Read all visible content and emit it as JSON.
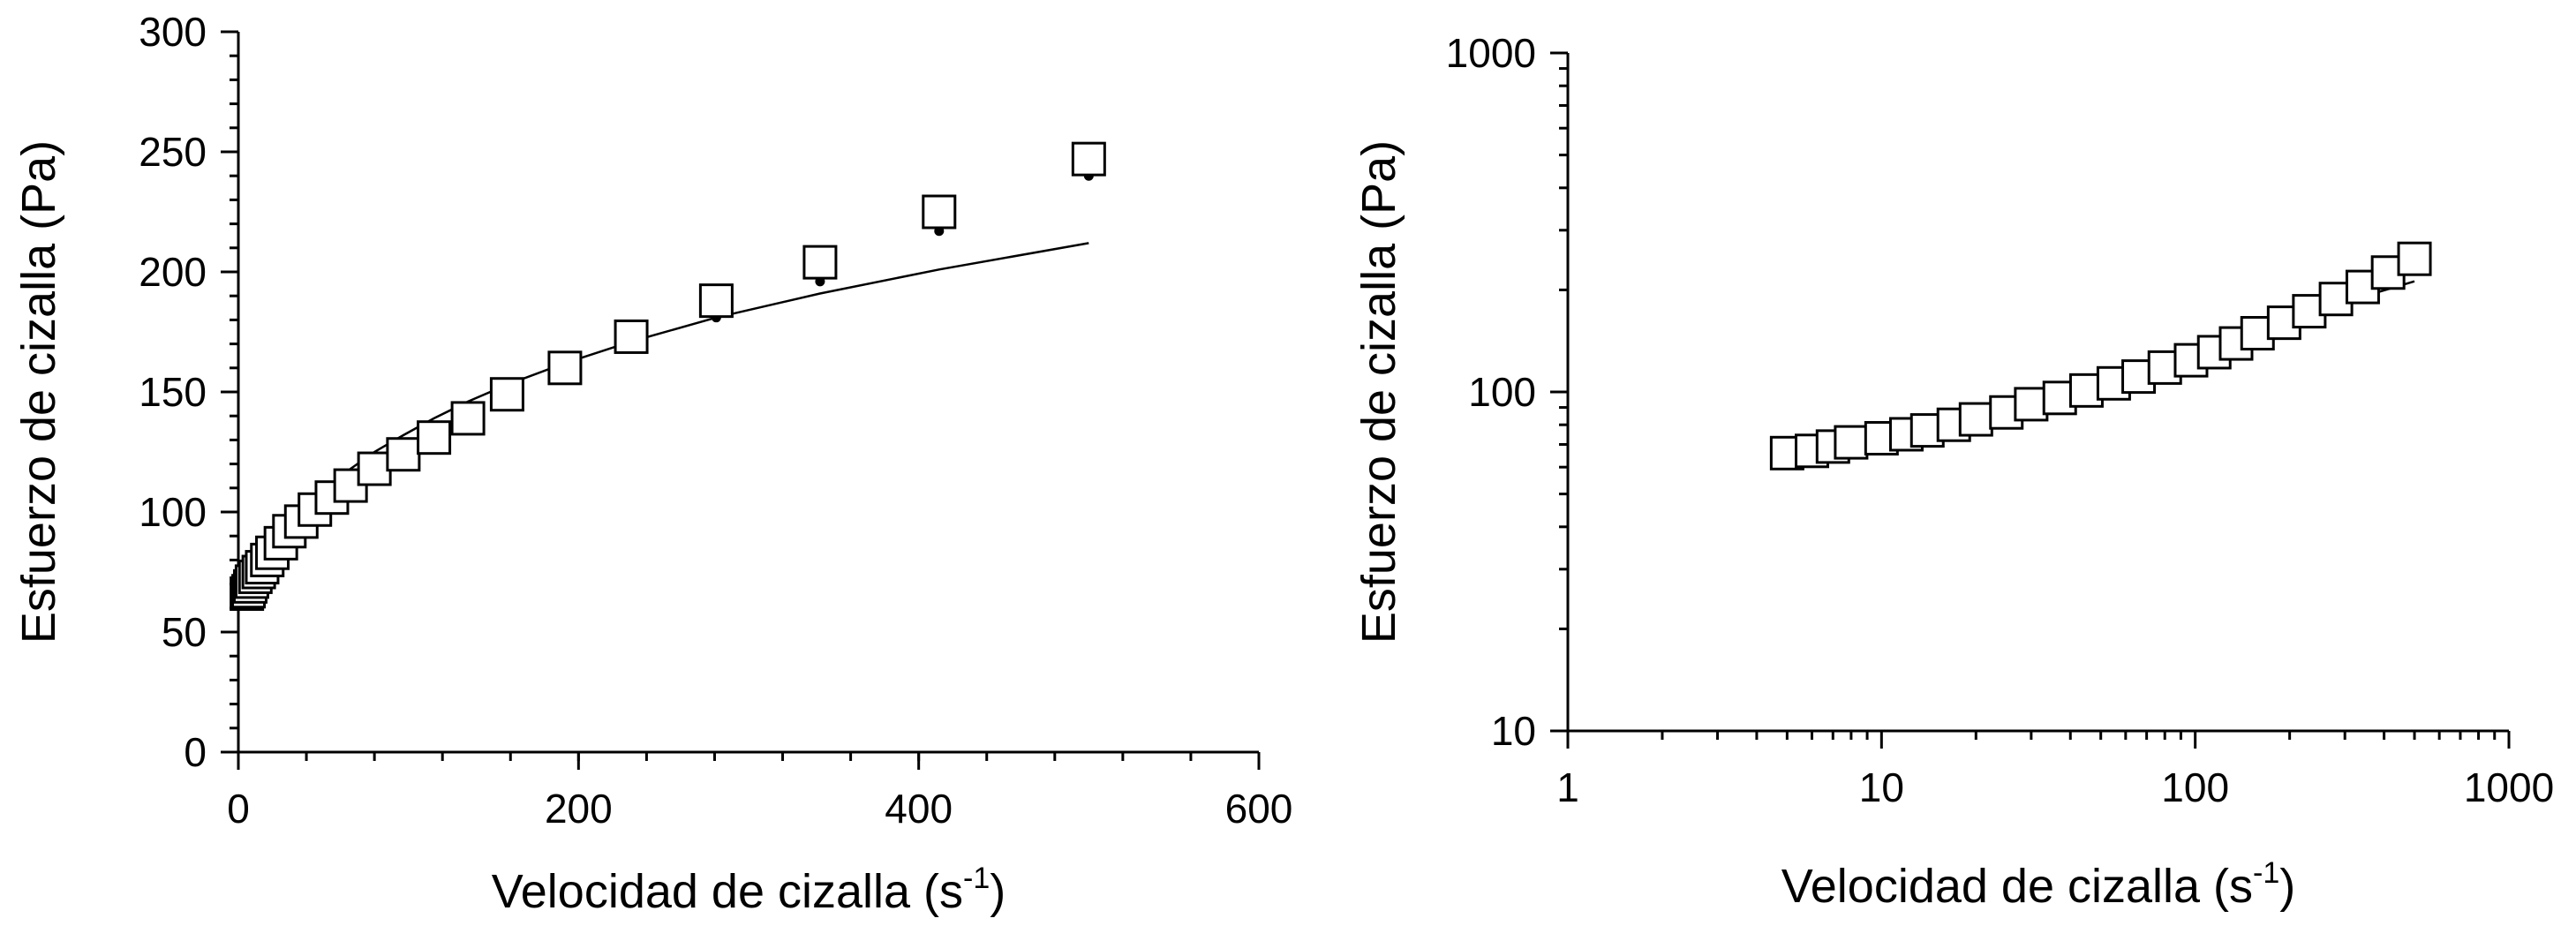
{
  "chart_data": [
    {
      "type": "scatter",
      "xlabel": "Velocidad de cizalla (s",
      "xlabel_sup": "-1",
      "xlabel_close": ")",
      "ylabel": "Esfuerzo de cizalla (Pa)",
      "xscale": "linear",
      "yscale": "linear",
      "xlim": [
        0,
        600
      ],
      "ylim": [
        0,
        300
      ],
      "xticks": [
        0,
        200,
        400,
        600
      ],
      "xtick_labels": [
        "0",
        "200",
        "400",
        "600"
      ],
      "yticks": [
        0,
        50,
        100,
        150,
        200,
        250,
        300
      ],
      "ytick_labels": [
        "0",
        "50",
        "100",
        "150",
        "200",
        "250",
        "300"
      ],
      "grid": false,
      "series": [
        {
          "marker": "open-square",
          "x": [
            5,
            6,
            7,
            8,
            10,
            12,
            14,
            17,
            20,
            25,
            30,
            37,
            45,
            55,
            66,
            80,
            97,
            115,
            135,
            158,
            192,
            231,
            281,
            342,
            412,
            500
          ],
          "y": [
            66,
            67,
            69,
            71,
            73,
            75,
            77,
            80,
            83,
            87,
            92,
            96,
            101,
            106,
            111,
            118,
            124,
            131,
            139,
            149,
            160,
            173,
            188,
            204,
            225,
            247
          ]
        },
        {
          "style": "dotted",
          "model": "power-law",
          "x": [
            5,
            6,
            7,
            8,
            10,
            12,
            14,
            17,
            20,
            25,
            30,
            37,
            45,
            55,
            66,
            80,
            97,
            115,
            135,
            158,
            192,
            231,
            281,
            342,
            412,
            500
          ],
          "y": [
            63,
            65,
            67,
            69,
            72,
            75,
            78,
            81,
            84,
            89,
            93,
            98,
            103,
            109,
            115,
            121,
            128,
            135,
            142,
            149,
            159,
            169,
            181,
            196,
            217,
            240
          ]
        },
        {
          "style": "solid",
          "model": "power-law",
          "x": [
            5,
            6,
            7,
            8,
            10,
            12,
            14,
            17,
            20,
            25,
            30,
            37,
            45,
            55,
            66,
            80,
            97,
            115,
            135,
            158,
            192,
            231,
            281,
            342,
            412,
            500
          ],
          "y": [
            60,
            63,
            66,
            68,
            72,
            75,
            78,
            82,
            85,
            90,
            95,
            100,
            106,
            112,
            118,
            125,
            132,
            139,
            146,
            153,
            162,
            171,
            181,
            191,
            201,
            212
          ]
        }
      ]
    },
    {
      "type": "scatter",
      "xlabel": "Velocidad de cizalla (s",
      "xlabel_sup": "-1",
      "xlabel_close": ")",
      "ylabel": "Esfuerzo de cizalla (Pa)",
      "xscale": "log",
      "yscale": "log",
      "xlim": [
        1,
        1000
      ],
      "ylim": [
        10,
        1000
      ],
      "xticks": [
        1,
        10,
        100,
        1000
      ],
      "xtick_labels": [
        "1",
        "10",
        "100",
        "1000"
      ],
      "yticks": [
        10,
        100,
        1000
      ],
      "ytick_labels": [
        "10",
        "100",
        "1000"
      ],
      "grid": false,
      "series": [
        {
          "marker": "open-square",
          "x": [
            5,
            6,
            7,
            8,
            10,
            12,
            14,
            17,
            20,
            25,
            30,
            37,
            45,
            55,
            66,
            80,
            97,
            115,
            135,
            158,
            192,
            231,
            281,
            342,
            412,
            500
          ],
          "y": [
            66,
            67,
            69,
            71,
            73,
            75,
            77,
            80,
            83,
            87,
            92,
            96,
            101,
            106,
            111,
            118,
            124,
            131,
            139,
            149,
            160,
            173,
            188,
            204,
            225,
            247
          ]
        },
        {
          "style": "dotted",
          "model": "power-law",
          "x": [
            5,
            6,
            7,
            8,
            10,
            12,
            14,
            17,
            20,
            25,
            30,
            37,
            45,
            55,
            66,
            80,
            97,
            115,
            135,
            158,
            192,
            231,
            281,
            342,
            412,
            500
          ],
          "y": [
            63,
            65,
            67,
            69,
            72,
            75,
            78,
            81,
            84,
            89,
            93,
            98,
            103,
            109,
            115,
            121,
            128,
            135,
            142,
            149,
            159,
            169,
            181,
            196,
            217,
            240
          ]
        },
        {
          "style": "solid",
          "model": "power-law",
          "x": [
            5,
            6,
            7,
            8,
            10,
            12,
            14,
            17,
            20,
            25,
            30,
            37,
            45,
            55,
            66,
            80,
            97,
            115,
            135,
            158,
            192,
            231,
            281,
            342,
            412,
            500
          ],
          "y": [
            60,
            63,
            66,
            68,
            72,
            75,
            78,
            82,
            85,
            90,
            95,
            100,
            106,
            112,
            118,
            125,
            132,
            139,
            146,
            153,
            162,
            171,
            181,
            191,
            201,
            212
          ]
        }
      ]
    }
  ]
}
